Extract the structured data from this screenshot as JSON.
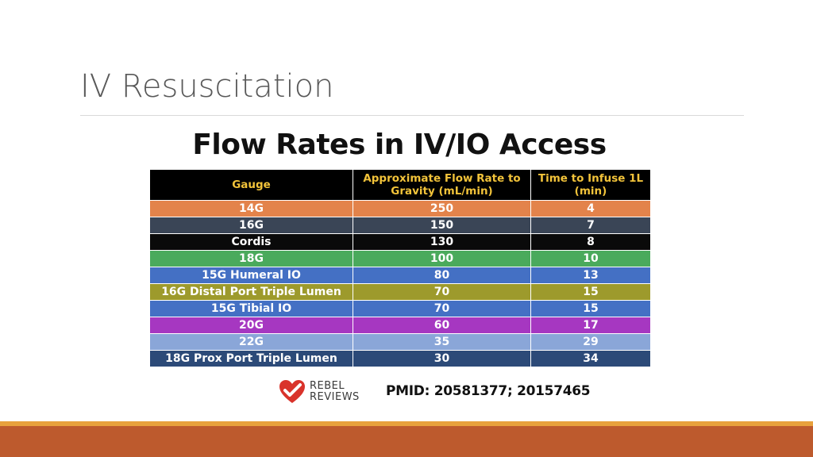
{
  "slide": {
    "title": "IV Resuscitation"
  },
  "infographic": {
    "title": "Flow Rates in IV/IO Access",
    "columns": [
      "Gauge",
      "Approximate Flow Rate to Gravity (mL/min)",
      "Time to Infuse 1L (min)"
    ],
    "rows": [
      {
        "gauge": "14G",
        "flow": "250",
        "time": "4",
        "color": "#e3834b"
      },
      {
        "gauge": "16G",
        "flow": "150",
        "time": "7",
        "color": "#3a4556"
      },
      {
        "gauge": "Cordis",
        "flow": "130",
        "time": "8",
        "color": "#0a0a0a"
      },
      {
        "gauge": "18G",
        "flow": "100",
        "time": "10",
        "color": "#4aaa5c"
      },
      {
        "gauge": "15G Humeral IO",
        "flow": "80",
        "time": "13",
        "color": "#4470c4"
      },
      {
        "gauge": "16G Distal Port Triple Lumen",
        "flow": "70",
        "time": "15",
        "color": "#9d9a2c"
      },
      {
        "gauge": "15G Tibial IO",
        "flow": "70",
        "time": "15",
        "color": "#4470c4"
      },
      {
        "gauge": "20G",
        "flow": "60",
        "time": "17",
        "color": "#a637c1"
      },
      {
        "gauge": "22G",
        "flow": "35",
        "time": "29",
        "color": "#8aa6d8"
      },
      {
        "gauge": "18G Prox Port Triple Lumen",
        "flow": "30",
        "time": "34",
        "color": "#2c4a78"
      }
    ]
  },
  "footer": {
    "logo_line1": "REBEL",
    "logo_line2": "REVIEWS",
    "logo_icon": "heart-check-icon",
    "pmid": "PMID: 20581377; 20157465",
    "accent_colors": {
      "band_top": "#e8a13c",
      "band": "#bd5a2d",
      "logo_red": "#d9332b"
    }
  }
}
